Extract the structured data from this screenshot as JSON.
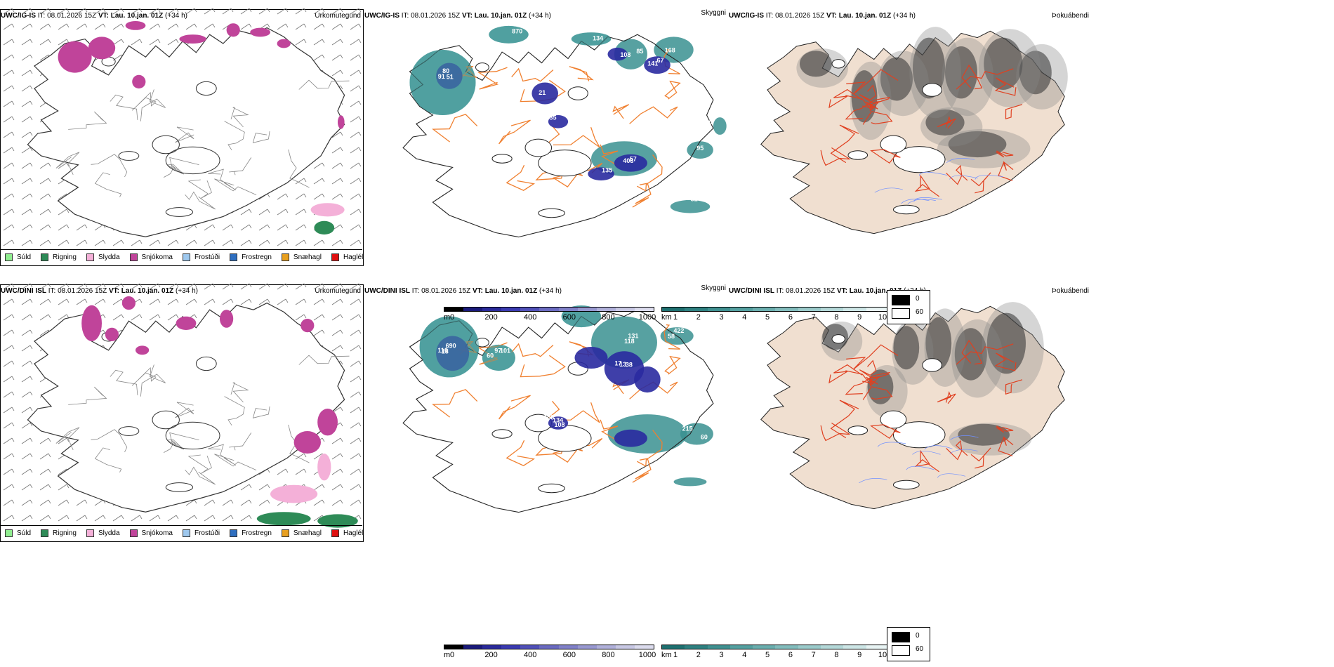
{
  "run_info": {
    "it_label": "IT:",
    "it_value": "08.01.2026 15Z",
    "vt_label": "VT:",
    "vt_value": "Lau. 10.jan. 01Z",
    "lead": "(+34 h)"
  },
  "rows": [
    {
      "model": "UWC/IG-IS",
      "panels": {
        "precip_type": {
          "title": "Úrkomutegund"
        },
        "cloud_base": {
          "title": "Skyggni",
          "labels": [
            "80",
            "870",
            "67",
            "85",
            "408",
            "57",
            "21",
            "32",
            "108",
            "51",
            "35",
            "134",
            "135",
            "168",
            "91",
            "95",
            "141",
            "0"
          ]
        },
        "cloud_cover": {
          "title": "Þokuábendi"
        }
      }
    },
    {
      "model": "UWC/DINI ISL",
      "panels": {
        "precip_type": {
          "title": "Úrkomutegund"
        },
        "cloud_base": {
          "title": "Skyggni",
          "labels": [
            "110",
            "97",
            "38",
            "131",
            "158",
            "60",
            "18",
            "422",
            "13",
            "101",
            "134",
            "118",
            "690",
            "215",
            "17",
            "58",
            "108",
            "60"
          ]
        },
        "cloud_cover": {
          "title": "Þokuábendi"
        }
      }
    }
  ],
  "precip_legend": [
    {
      "label": "Súld",
      "color": "#90ee90"
    },
    {
      "label": "Rigning",
      "color": "#2e8b57"
    },
    {
      "label": "Slydda",
      "color": "#f4b0d8"
    },
    {
      "label": "Snjókoma",
      "color": "#c0449a"
    },
    {
      "label": "Frostúði",
      "color": "#9ec8ee"
    },
    {
      "label": "Frostregn",
      "color": "#2f6fc0"
    },
    {
      "label": "Snæhagl",
      "color": "#e8a020"
    },
    {
      "label": "Haglél",
      "color": "#e01010"
    }
  ],
  "height_scale": {
    "unit": "m",
    "ticks": [
      "0",
      "200",
      "400",
      "600",
      "800",
      "1000"
    ],
    "colors": [
      "#000000",
      "#1a1a7a",
      "#2a2a9a",
      "#3a3ab0",
      "#5050b8",
      "#6a6ac0",
      "#8080c8",
      "#9898d0",
      "#b0b0da",
      "#c8c8e4",
      "#dcdcee"
    ]
  },
  "visibility_scale": {
    "unit": "km",
    "ticks": [
      "1",
      "2",
      "3",
      "4",
      "5",
      "6",
      "7",
      "8",
      "9",
      "10"
    ],
    "colors": [
      "#1e7070",
      "#2e8080",
      "#3f9090",
      "#54a0a0",
      "#6aaeae",
      "#82bcbc",
      "#9acaca",
      "#b4d8d8",
      "#cde6e6",
      "#e8f4f4"
    ]
  },
  "fog_scale": {
    "values": [
      "0",
      "60"
    ],
    "colors": [
      "#000000",
      "#ffffff"
    ]
  },
  "colors": {
    "coast": "#333333",
    "roads": "#f08030",
    "fog_land": "#f0dfd0",
    "fog_roads": "#e04020",
    "rivers": "#7090ff"
  }
}
